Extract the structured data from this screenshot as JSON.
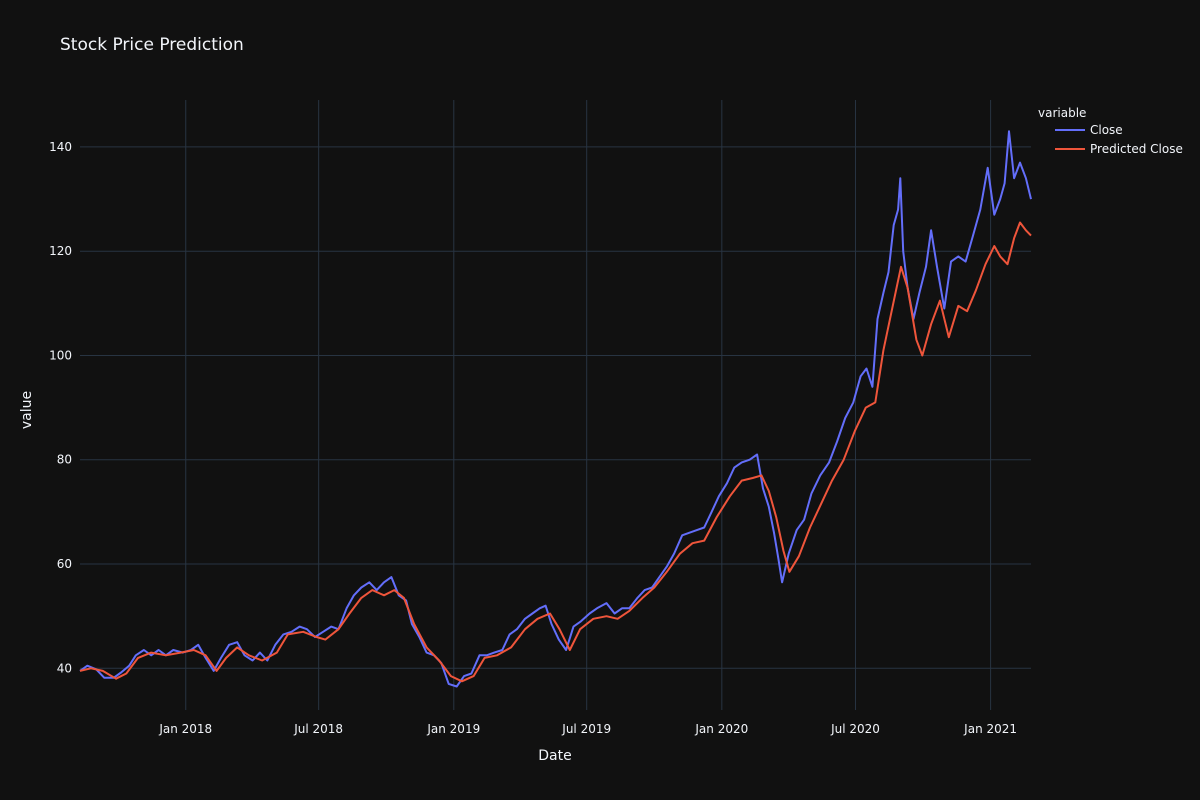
{
  "chart_data": {
    "type": "line",
    "title": "Stock Price Prediction",
    "xlabel": "Date",
    "ylabel": "value",
    "xlim": [
      "2017-08-10",
      "2021-02-25"
    ],
    "ylim": [
      32,
      149
    ],
    "x_ticks": [
      {
        "date": "2018-01-01",
        "label": "Jan 2018"
      },
      {
        "date": "2018-07-01",
        "label": "Jul 2018"
      },
      {
        "date": "2019-01-01",
        "label": "Jan 2019"
      },
      {
        "date": "2019-07-01",
        "label": "Jul 2019"
      },
      {
        "date": "2020-01-01",
        "label": "Jan 2020"
      },
      {
        "date": "2020-07-01",
        "label": "Jul 2020"
      },
      {
        "date": "2021-01-01",
        "label": "Jan 2021"
      }
    ],
    "y_ticks": [
      40,
      60,
      80,
      100,
      120,
      140
    ],
    "grid": true,
    "legend": {
      "title": "variable",
      "position": "top-right"
    },
    "series": [
      {
        "name": "Close",
        "color": "#636efa",
        "points": [
          [
            "2017-08-10",
            39.5
          ],
          [
            "2017-08-20",
            40.5
          ],
          [
            "2017-09-01",
            39.8
          ],
          [
            "2017-09-12",
            38.2
          ],
          [
            "2017-09-25",
            38.2
          ],
          [
            "2017-10-05",
            39.2
          ],
          [
            "2017-10-16",
            40.5
          ],
          [
            "2017-10-25",
            42.5
          ],
          [
            "2017-11-05",
            43.5
          ],
          [
            "2017-11-15",
            42.5
          ],
          [
            "2017-11-25",
            43.5
          ],
          [
            "2017-12-05",
            42.5
          ],
          [
            "2017-12-15",
            43.5
          ],
          [
            "2017-12-28",
            43.0
          ],
          [
            "2018-01-08",
            43.5
          ],
          [
            "2018-01-18",
            44.5
          ],
          [
            "2018-01-28",
            42.0
          ],
          [
            "2018-02-08",
            39.5
          ],
          [
            "2018-02-18",
            42.0
          ],
          [
            "2018-03-01",
            44.5
          ],
          [
            "2018-03-12",
            45.0
          ],
          [
            "2018-03-22",
            42.5
          ],
          [
            "2018-04-02",
            41.5
          ],
          [
            "2018-04-12",
            43.0
          ],
          [
            "2018-04-22",
            41.5
          ],
          [
            "2018-05-03",
            44.5
          ],
          [
            "2018-05-14",
            46.5
          ],
          [
            "2018-05-25",
            47.0
          ],
          [
            "2018-06-05",
            48.0
          ],
          [
            "2018-06-15",
            47.5
          ],
          [
            "2018-06-26",
            46.0
          ],
          [
            "2018-07-07",
            47.0
          ],
          [
            "2018-07-18",
            48.0
          ],
          [
            "2018-07-28",
            47.5
          ],
          [
            "2018-08-08",
            51.5
          ],
          [
            "2018-08-18",
            54.0
          ],
          [
            "2018-08-28",
            55.5
          ],
          [
            "2018-09-08",
            56.5
          ],
          [
            "2018-09-18",
            55.0
          ],
          [
            "2018-09-28",
            56.5
          ],
          [
            "2018-10-08",
            57.5
          ],
          [
            "2018-10-18",
            54.0
          ],
          [
            "2018-10-28",
            53.0
          ],
          [
            "2018-11-05",
            48.5
          ],
          [
            "2018-11-15",
            46.0
          ],
          [
            "2018-11-25",
            43.0
          ],
          [
            "2018-12-05",
            42.5
          ],
          [
            "2018-12-15",
            41.0
          ],
          [
            "2018-12-25",
            37.0
          ],
          [
            "2019-01-05",
            36.5
          ],
          [
            "2019-01-15",
            38.5
          ],
          [
            "2019-01-25",
            39.0
          ],
          [
            "2019-02-05",
            42.5
          ],
          [
            "2019-02-15",
            42.5
          ],
          [
            "2019-02-25",
            43.0
          ],
          [
            "2019-03-08",
            43.5
          ],
          [
            "2019-03-18",
            46.5
          ],
          [
            "2019-03-28",
            47.5
          ],
          [
            "2019-04-08",
            49.5
          ],
          [
            "2019-04-18",
            50.5
          ],
          [
            "2019-04-28",
            51.5
          ],
          [
            "2019-05-06",
            52.0
          ],
          [
            "2019-05-14",
            48.5
          ],
          [
            "2019-05-24",
            45.5
          ],
          [
            "2019-06-03",
            43.5
          ],
          [
            "2019-06-13",
            48.0
          ],
          [
            "2019-06-23",
            49.0
          ],
          [
            "2019-07-05",
            50.5
          ],
          [
            "2019-07-15",
            51.5
          ],
          [
            "2019-07-28",
            52.5
          ],
          [
            "2019-08-08",
            50.5
          ],
          [
            "2019-08-18",
            51.5
          ],
          [
            "2019-08-28",
            51.5
          ],
          [
            "2019-09-08",
            53.5
          ],
          [
            "2019-09-18",
            55.0
          ],
          [
            "2019-09-28",
            55.5
          ],
          [
            "2019-10-08",
            57.5
          ],
          [
            "2019-10-18",
            59.5
          ],
          [
            "2019-10-28",
            62.0
          ],
          [
            "2019-11-08",
            65.5
          ],
          [
            "2019-11-18",
            66.0
          ],
          [
            "2019-11-28",
            66.5
          ],
          [
            "2019-12-08",
            67.0
          ],
          [
            "2019-12-18",
            70.0
          ],
          [
            "2019-12-28",
            73.0
          ],
          [
            "2020-01-08",
            75.5
          ],
          [
            "2020-01-18",
            78.5
          ],
          [
            "2020-01-28",
            79.5
          ],
          [
            "2020-02-08",
            80.0
          ],
          [
            "2020-02-18",
            81.0
          ],
          [
            "2020-02-26",
            74.5
          ],
          [
            "2020-03-05",
            71.0
          ],
          [
            "2020-03-12",
            66.0
          ],
          [
            "2020-03-18",
            61.0
          ],
          [
            "2020-03-23",
            56.5
          ],
          [
            "2020-04-01",
            62.0
          ],
          [
            "2020-04-12",
            66.5
          ],
          [
            "2020-04-22",
            68.5
          ],
          [
            "2020-05-02",
            73.5
          ],
          [
            "2020-05-14",
            77.0
          ],
          [
            "2020-05-26",
            79.5
          ],
          [
            "2020-06-06",
            83.5
          ],
          [
            "2020-06-17",
            88.0
          ],
          [
            "2020-06-28",
            91.0
          ],
          [
            "2020-07-08",
            96.0
          ],
          [
            "2020-07-16",
            97.5
          ],
          [
            "2020-07-24",
            94.0
          ],
          [
            "2020-07-31",
            107.0
          ],
          [
            "2020-08-08",
            112.0
          ],
          [
            "2020-08-15",
            116.0
          ],
          [
            "2020-08-22",
            125.0
          ],
          [
            "2020-08-28",
            128.0
          ],
          [
            "2020-08-31",
            134.0
          ],
          [
            "2020-09-04",
            120.0
          ],
          [
            "2020-09-10",
            113.0
          ],
          [
            "2020-09-18",
            107.0
          ],
          [
            "2020-09-26",
            112.0
          ],
          [
            "2020-10-05",
            117.0
          ],
          [
            "2020-10-12",
            124.0
          ],
          [
            "2020-10-20",
            117.0
          ],
          [
            "2020-10-30",
            109.0
          ],
          [
            "2020-11-08",
            118.0
          ],
          [
            "2020-11-18",
            119.0
          ],
          [
            "2020-11-28",
            118.0
          ],
          [
            "2020-12-08",
            123.0
          ],
          [
            "2020-12-18",
            128.0
          ],
          [
            "2020-12-28",
            136.0
          ],
          [
            "2021-01-06",
            127.0
          ],
          [
            "2021-01-14",
            130.0
          ],
          [
            "2021-01-20",
            133.0
          ],
          [
            "2021-01-26",
            143.0
          ],
          [
            "2021-02-02",
            134.0
          ],
          [
            "2021-02-10",
            137.0
          ],
          [
            "2021-02-18",
            134.0
          ],
          [
            "2021-02-25",
            130.0
          ]
        ]
      },
      {
        "name": "Predicted Close",
        "color": "#ef553b",
        "points": [
          [
            "2017-08-10",
            39.5
          ],
          [
            "2017-08-25",
            40.0
          ],
          [
            "2017-09-10",
            39.5
          ],
          [
            "2017-09-28",
            38.0
          ],
          [
            "2017-10-12",
            39.0
          ],
          [
            "2017-10-28",
            42.0
          ],
          [
            "2017-11-15",
            43.0
          ],
          [
            "2017-12-05",
            42.5
          ],
          [
            "2017-12-25",
            43.0
          ],
          [
            "2018-01-12",
            43.5
          ],
          [
            "2018-01-28",
            42.5
          ],
          [
            "2018-02-12",
            39.5
          ],
          [
            "2018-02-25",
            42.0
          ],
          [
            "2018-03-12",
            44.0
          ],
          [
            "2018-03-28",
            42.5
          ],
          [
            "2018-04-15",
            41.5
          ],
          [
            "2018-05-05",
            43.0
          ],
          [
            "2018-05-20",
            46.5
          ],
          [
            "2018-06-10",
            47.0
          ],
          [
            "2018-06-28",
            46.0
          ],
          [
            "2018-07-10",
            45.5
          ],
          [
            "2018-07-28",
            47.5
          ],
          [
            "2018-08-12",
            50.5
          ],
          [
            "2018-08-28",
            53.5
          ],
          [
            "2018-09-12",
            55.0
          ],
          [
            "2018-09-28",
            54.0
          ],
          [
            "2018-10-12",
            55.0
          ],
          [
            "2018-10-25",
            53.5
          ],
          [
            "2018-11-08",
            48.5
          ],
          [
            "2018-11-25",
            44.0
          ],
          [
            "2018-12-12",
            41.5
          ],
          [
            "2018-12-28",
            38.5
          ],
          [
            "2019-01-12",
            37.5
          ],
          [
            "2019-01-28",
            38.5
          ],
          [
            "2019-02-12",
            42.0
          ],
          [
            "2019-03-01",
            42.5
          ],
          [
            "2019-03-20",
            44.0
          ],
          [
            "2019-04-08",
            47.5
          ],
          [
            "2019-04-25",
            49.5
          ],
          [
            "2019-05-12",
            50.5
          ],
          [
            "2019-05-25",
            47.5
          ],
          [
            "2019-06-08",
            43.5
          ],
          [
            "2019-06-22",
            47.5
          ],
          [
            "2019-07-10",
            49.5
          ],
          [
            "2019-07-28",
            50.0
          ],
          [
            "2019-08-12",
            49.5
          ],
          [
            "2019-08-28",
            51.0
          ],
          [
            "2019-09-15",
            53.5
          ],
          [
            "2019-10-01",
            55.5
          ],
          [
            "2019-10-18",
            58.5
          ],
          [
            "2019-11-05",
            62.0
          ],
          [
            "2019-11-22",
            64.0
          ],
          [
            "2019-12-08",
            64.5
          ],
          [
            "2019-12-25",
            69.0
          ],
          [
            "2020-01-12",
            73.0
          ],
          [
            "2020-01-28",
            76.0
          ],
          [
            "2020-02-12",
            76.5
          ],
          [
            "2020-02-24",
            77.0
          ],
          [
            "2020-03-05",
            74.0
          ],
          [
            "2020-03-15",
            69.0
          ],
          [
            "2020-03-25",
            62.5
          ],
          [
            "2020-04-02",
            58.5
          ],
          [
            "2020-04-15",
            61.5
          ],
          [
            "2020-04-30",
            67.0
          ],
          [
            "2020-05-15",
            71.5
          ],
          [
            "2020-05-30",
            76.0
          ],
          [
            "2020-06-15",
            80.0
          ],
          [
            "2020-06-30",
            85.5
          ],
          [
            "2020-07-15",
            90.0
          ],
          [
            "2020-07-28",
            91.0
          ],
          [
            "2020-08-08",
            101.0
          ],
          [
            "2020-08-20",
            109.0
          ],
          [
            "2020-09-01",
            117.0
          ],
          [
            "2020-09-10",
            113.0
          ],
          [
            "2020-09-22",
            103.0
          ],
          [
            "2020-09-30",
            100.0
          ],
          [
            "2020-10-12",
            106.0
          ],
          [
            "2020-10-24",
            110.5
          ],
          [
            "2020-11-05",
            103.5
          ],
          [
            "2020-11-18",
            109.5
          ],
          [
            "2020-11-30",
            108.5
          ],
          [
            "2020-12-12",
            112.5
          ],
          [
            "2020-12-25",
            117.5
          ],
          [
            "2021-01-06",
            121.0
          ],
          [
            "2021-01-14",
            119.0
          ],
          [
            "2021-01-24",
            117.5
          ],
          [
            "2021-02-02",
            122.5
          ],
          [
            "2021-02-10",
            125.5
          ],
          [
            "2021-02-18",
            124.0
          ],
          [
            "2021-02-25",
            123.0
          ]
        ]
      }
    ]
  }
}
